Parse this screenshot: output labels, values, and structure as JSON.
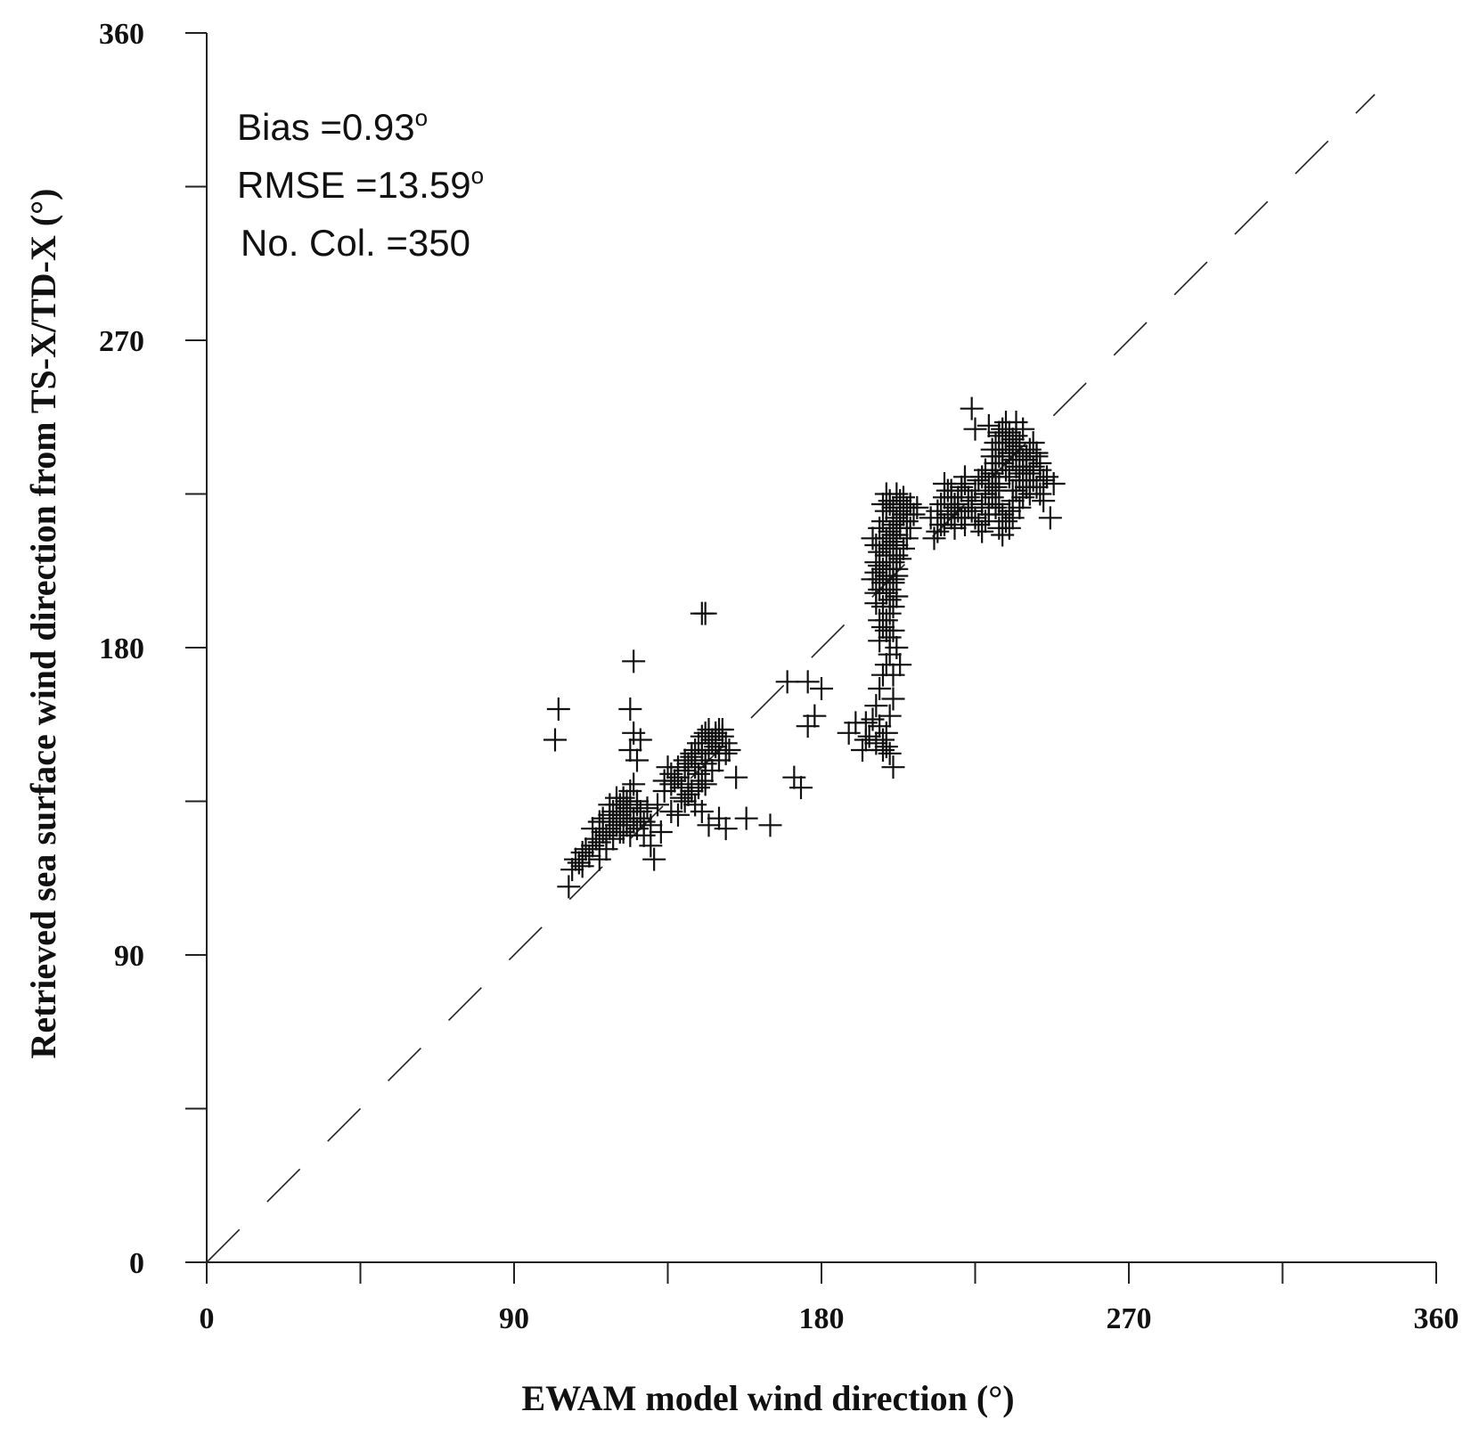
{
  "chart_data": {
    "type": "scatter",
    "xlabel": "EWAM model wind direction (°)",
    "ylabel": "Retrieved sea surface wind direction from TS-X/TD-X (°)",
    "xlim": [
      0,
      360
    ],
    "ylim": [
      0,
      360
    ],
    "x_ticks": [
      "0",
      "90",
      "180",
      "270",
      "360"
    ],
    "y_ticks": [
      "0",
      "90",
      "180",
      "270",
      "360"
    ],
    "minor_tick_step": 45,
    "reference_line": "1:1 dashed",
    "stats": {
      "bias": "Bias =0.93",
      "rmse": "RMSE =13.59",
      "ncol": "No. Col. =350",
      "degree": "o"
    },
    "marker": "+",
    "points": [
      [
        106,
        110
      ],
      [
        107,
        115
      ],
      [
        108,
        118
      ],
      [
        110,
        120
      ],
      [
        111,
        121
      ],
      [
        112,
        119
      ],
      [
        113,
        122
      ],
      [
        114,
        124
      ],
      [
        115,
        123
      ],
      [
        116,
        126
      ],
      [
        117,
        125
      ],
      [
        118,
        127
      ],
      [
        119,
        129
      ],
      [
        120,
        128
      ],
      [
        121,
        131
      ],
      [
        122,
        130
      ],
      [
        123,
        133
      ],
      [
        124,
        132
      ],
      [
        125,
        129
      ],
      [
        126,
        134
      ],
      [
        113,
        127
      ],
      [
        115,
        129
      ],
      [
        118,
        131
      ],
      [
        120,
        134
      ],
      [
        122,
        136
      ],
      [
        124,
        138
      ],
      [
        125,
        140
      ],
      [
        126,
        135
      ],
      [
        127,
        130
      ],
      [
        128,
        125
      ],
      [
        130,
        128
      ],
      [
        132,
        134
      ],
      [
        134,
        138
      ],
      [
        136,
        140
      ],
      [
        138,
        142
      ],
      [
        140,
        144
      ],
      [
        141,
        146
      ],
      [
        142,
        148
      ],
      [
        143,
        150
      ],
      [
        144,
        152
      ],
      [
        145,
        154
      ],
      [
        146,
        155
      ],
      [
        147,
        156
      ],
      [
        148,
        153
      ],
      [
        149,
        151
      ],
      [
        150,
        149
      ],
      [
        142,
        138
      ],
      [
        143,
        134
      ],
      [
        145,
        132
      ],
      [
        147,
        128
      ],
      [
        150,
        130
      ],
      [
        152,
        127
      ],
      [
        139,
        136
      ],
      [
        136,
        132
      ],
      [
        133,
        126
      ],
      [
        130,
        122
      ],
      [
        131,
        118
      ],
      [
        141,
        140
      ],
      [
        144,
        143
      ],
      [
        146,
        146
      ],
      [
        147,
        150
      ],
      [
        148,
        152
      ],
      [
        149,
        155
      ],
      [
        150,
        156
      ],
      [
        151,
        154
      ],
      [
        152,
        152
      ],
      [
        153,
        150
      ],
      [
        146,
        147
      ],
      [
        145,
        141
      ],
      [
        144,
        139
      ],
      [
        155,
        142
      ],
      [
        158,
        130
      ],
      [
        165,
        128
      ],
      [
        172,
        142
      ],
      [
        174,
        139
      ],
      [
        170,
        170
      ],
      [
        176,
        170
      ],
      [
        176,
        157
      ],
      [
        178,
        160
      ],
      [
        180,
        168
      ],
      [
        103,
        162
      ],
      [
        102,
        153
      ],
      [
        125,
        176
      ],
      [
        124,
        162
      ],
      [
        125,
        155
      ],
      [
        124,
        150
      ],
      [
        126,
        147
      ],
      [
        127,
        153
      ],
      [
        145,
        190
      ],
      [
        146,
        190
      ],
      [
        188,
        155
      ],
      [
        190,
        158
      ],
      [
        192,
        150
      ],
      [
        193,
        158
      ],
      [
        194,
        154
      ],
      [
        196,
        152
      ],
      [
        198,
        150
      ],
      [
        199,
        155
      ],
      [
        200,
        160
      ],
      [
        201,
        165
      ],
      [
        196,
        163
      ],
      [
        197,
        168
      ],
      [
        198,
        172
      ],
      [
        199,
        175
      ],
      [
        200,
        178
      ],
      [
        201,
        172
      ],
      [
        202,
        180
      ],
      [
        203,
        175
      ],
      [
        197,
        182
      ],
      [
        198,
        186
      ],
      [
        199,
        188
      ],
      [
        200,
        190
      ],
      [
        201,
        192
      ],
      [
        202,
        195
      ],
      [
        196,
        193
      ],
      [
        197,
        197
      ],
      [
        198,
        199
      ],
      [
        199,
        201
      ],
      [
        200,
        203
      ],
      [
        201,
        205
      ],
      [
        202,
        207
      ],
      [
        196,
        205
      ],
      [
        197,
        208
      ],
      [
        198,
        210
      ],
      [
        199,
        212
      ],
      [
        200,
        214
      ],
      [
        201,
        216
      ],
      [
        202,
        218
      ],
      [
        203,
        220
      ],
      [
        204,
        219
      ],
      [
        205,
        221
      ],
      [
        206,
        222
      ],
      [
        197,
        215
      ],
      [
        198,
        217
      ],
      [
        199,
        220
      ],
      [
        200,
        222
      ],
      [
        201,
        213
      ],
      [
        202,
        210
      ],
      [
        203,
        215
      ],
      [
        205,
        217
      ],
      [
        207,
        219
      ],
      [
        208,
        221
      ],
      [
        204,
        224
      ],
      [
        197,
        188
      ],
      [
        198,
        192
      ],
      [
        200,
        197
      ],
      [
        201,
        199
      ],
      [
        202,
        201
      ],
      [
        199,
        185
      ],
      [
        200,
        183
      ],
      [
        201,
        185
      ],
      [
        195,
        200
      ],
      [
        196,
        202
      ],
      [
        197,
        204
      ],
      [
        201,
        145
      ],
      [
        212,
        218
      ],
      [
        214,
        220
      ],
      [
        215,
        222
      ],
      [
        216,
        224
      ],
      [
        217,
        226
      ],
      [
        218,
        224
      ],
      [
        219,
        222
      ],
      [
        220,
        220
      ],
      [
        221,
        218
      ],
      [
        222,
        216
      ],
      [
        214,
        214
      ],
      [
        216,
        216
      ],
      [
        218,
        218
      ],
      [
        220,
        222
      ],
      [
        221,
        226
      ],
      [
        222,
        228
      ],
      [
        223,
        224
      ],
      [
        224,
        220
      ],
      [
        225,
        218
      ],
      [
        226,
        216
      ],
      [
        227,
        222
      ],
      [
        228,
        225
      ],
      [
        229,
        228
      ],
      [
        230,
        231
      ],
      [
        231,
        234
      ],
      [
        232,
        236
      ],
      [
        233,
        238
      ],
      [
        234,
        240
      ],
      [
        235,
        237
      ],
      [
        236,
        235
      ],
      [
        237,
        233
      ],
      [
        238,
        231
      ],
      [
        239,
        229
      ],
      [
        240,
        227
      ],
      [
        241,
        225
      ],
      [
        232,
        242
      ],
      [
        233,
        244
      ],
      [
        234,
        246
      ],
      [
        235,
        243
      ],
      [
        236,
        241
      ],
      [
        237,
        239
      ],
      [
        238,
        237
      ],
      [
        239,
        235
      ],
      [
        240,
        233
      ],
      [
        241,
        231
      ],
      [
        242,
        229
      ],
      [
        243,
        227
      ],
      [
        244,
        225
      ],
      [
        245,
        223
      ],
      [
        230,
        238
      ],
      [
        231,
        240
      ],
      [
        232,
        243
      ],
      [
        229,
        245
      ],
      [
        225,
        244
      ],
      [
        224,
        250
      ],
      [
        230,
        230
      ],
      [
        231,
        226
      ],
      [
        232,
        222
      ],
      [
        233,
        219
      ],
      [
        234,
        217
      ],
      [
        235,
        220
      ],
      [
        236,
        223
      ],
      [
        237,
        226
      ],
      [
        238,
        229
      ],
      [
        239,
        232
      ],
      [
        240,
        235
      ],
      [
        241,
        238
      ],
      [
        242,
        240
      ],
      [
        243,
        237
      ],
      [
        244,
        234
      ],
      [
        246,
        230
      ],
      [
        247,
        218
      ],
      [
        248,
        228
      ],
      [
        227,
        214
      ],
      [
        228,
        217
      ],
      [
        229,
        221
      ],
      [
        230,
        224
      ],
      [
        231,
        227
      ],
      [
        232,
        215
      ],
      [
        233,
        213
      ],
      [
        235,
        215
      ],
      [
        236,
        218
      ],
      [
        238,
        221
      ],
      [
        239,
        224
      ],
      [
        240,
        227
      ],
      [
        241,
        229
      ],
      [
        242,
        233
      ],
      [
        243,
        236
      ],
      [
        244,
        232
      ],
      [
        245,
        229
      ],
      [
        222,
        218
      ],
      [
        223,
        221
      ],
      [
        224,
        223
      ],
      [
        225,
        226
      ],
      [
        226,
        229
      ],
      [
        213,
        212
      ],
      [
        215,
        216
      ],
      [
        217,
        219
      ],
      [
        219,
        221
      ],
      [
        220,
        224
      ],
      [
        221,
        227
      ],
      [
        222,
        230
      ],
      [
        216,
        228
      ],
      [
        218,
        226
      ],
      [
        219,
        215
      ],
      [
        234,
        232
      ],
      [
        236,
        238
      ],
      [
        238,
        240
      ],
      [
        240,
        236
      ],
      [
        242,
        232
      ],
      [
        233,
        236
      ],
      [
        235,
        240
      ],
      [
        237,
        242
      ],
      [
        239,
        244
      ],
      [
        237,
        246
      ],
      [
        232,
        228
      ],
      [
        231,
        232
      ],
      [
        233,
        234
      ],
      [
        235,
        230
      ],
      [
        236,
        226
      ],
      [
        231,
        221
      ],
      [
        229,
        219
      ],
      [
        230,
        236
      ],
      [
        228,
        232
      ],
      [
        227,
        230
      ],
      [
        115,
        118
      ],
      [
        117,
        121
      ],
      [
        119,
        124
      ],
      [
        121,
        126
      ],
      [
        123,
        128
      ],
      [
        125,
        130
      ],
      [
        127,
        132
      ],
      [
        129,
        133
      ],
      [
        119,
        132
      ],
      [
        121,
        134
      ],
      [
        123,
        135
      ],
      [
        116,
        130
      ],
      [
        118,
        134
      ],
      [
        120,
        136
      ],
      [
        122,
        126
      ],
      [
        124,
        125
      ],
      [
        126,
        127
      ],
      [
        128,
        129
      ],
      [
        110,
        116
      ],
      [
        109,
        117
      ],
      [
        135,
        145
      ],
      [
        137,
        141
      ],
      [
        139,
        139
      ],
      [
        141,
        137
      ],
      [
        143,
        145
      ],
      [
        145,
        149
      ],
      [
        147,
        152
      ],
      [
        149,
        154
      ],
      [
        151,
        156
      ],
      [
        134,
        141
      ],
      [
        136,
        143
      ],
      [
        138,
        145
      ],
      [
        140,
        147
      ],
      [
        142,
        149
      ],
      [
        146,
        140
      ],
      [
        148,
        144
      ],
      [
        150,
        147
      ],
      [
        152,
        149
      ],
      [
        140,
        135
      ],
      [
        138,
        131
      ],
      [
        197,
        157
      ],
      [
        198,
        153
      ],
      [
        199,
        151
      ],
      [
        200,
        149
      ],
      [
        195,
        159
      ],
      [
        193,
        153
      ],
      [
        199,
        196
      ],
      [
        200,
        194
      ],
      [
        201,
        200
      ],
      [
        202,
        203
      ],
      [
        203,
        206
      ],
      [
        204,
        209
      ],
      [
        205,
        212
      ],
      [
        206,
        215
      ],
      [
        198,
        222
      ],
      [
        199,
        225
      ],
      [
        200,
        223
      ],
      [
        201,
        221
      ],
      [
        202,
        225
      ],
      [
        203,
        223
      ],
      [
        196,
        196
      ],
      [
        197,
        200
      ],
      [
        198,
        203
      ],
      [
        199,
        207
      ],
      [
        200,
        209
      ],
      [
        201,
        211
      ],
      [
        202,
        213
      ],
      [
        203,
        217
      ],
      [
        196,
        210
      ],
      [
        195,
        212
      ]
    ]
  }
}
